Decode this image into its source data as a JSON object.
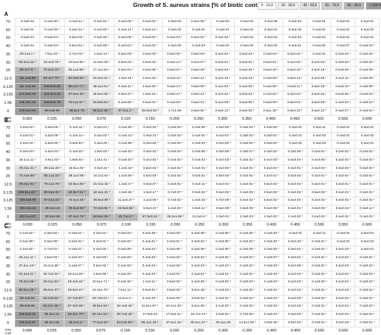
{
  "header": {
    "title": "Growth of S. aureus strains [% of biotic control]",
    "legend": [
      "0 - 19,9",
      "20 - 39,9",
      "40 - 59,9",
      "60 - 79,9",
      "80 - 99,9",
      "> 100 %"
    ]
  },
  "row_labels": [
    "70",
    "60",
    "50",
    "40",
    "35",
    "30",
    "25",
    "12.5",
    "6.125",
    "3.125",
    "1.56",
    "0"
  ],
  "column_labels": [
    "0.000",
    "0.025",
    "0.050",
    "0.075",
    "0.100",
    "0.150",
    "0.200",
    "0.250",
    "0.300",
    "0.350",
    "0.400",
    "0.450",
    "0.500",
    "0.550",
    "0.600"
  ],
  "axis_label_rows": "CRV",
  "axis_label_cols": "CXP",
  "panels": [
    {
      "label": "A",
      "rows": [
        [
          "0.3±0.02",
          "0.4±0.06 *",
          "0.4±0.11 *",
          "0.3±0.01 *",
          "0.4±0.06 *",
          "0.4±0.02 *",
          "0.3±0.03",
          "0.4±0.05 *",
          "0.4±0.02",
          "0.4±0.03",
          "0.4±0.08",
          "0.4±0.03",
          "0.3±0.01",
          "0.3±0.01",
          "0.3±0.01"
        ],
        [
          "0.3±0.01",
          "0.2±0.09 *",
          "0.2±0.14 *",
          "0.2±0.02 *",
          "0.4±0.14 *",
          "0.4±0.14 *",
          "0.3±0.03",
          "0.4±0.01",
          "0.4±0.01",
          "0.3±0.02",
          "0.3±0.01",
          "0.3±0.10",
          "0.4±0.02",
          "0.3±0.01",
          "0.3±0.03"
        ],
        [
          "0.5±0.04",
          "0.5±0.04 *",
          "0.5±0.04 *",
          "0.4±0.25 *",
          "0.4±0.05 *",
          "0.4±0.02 *",
          "0.4±0.03 *",
          "0.4±0.02 *",
          "0.4±0.02 *",
          "0.3±0.02",
          "0.3±0.02",
          "0.4±0.03",
          "0.4±0.03",
          "0.4±0.02",
          "0.4±0.01"
        ],
        [
          "0.3±0.03",
          "0.3±0.03 *",
          "0.6±0.61 *",
          "0.2±0.08 *",
          "0.2±0.01 *",
          "0.4±0.02 *",
          "0.3±0.03",
          "0.3±0.03",
          "0.3±0.02",
          "0.3±0.08",
          "0.3±0.03",
          "0.4±0.01",
          "0.2±0.05",
          "0.3±0.07",
          "0.3±0.03 *"
        ],
        [
          "20.1±3.1 *",
          "7.5±1.02 *",
          "0.7±0.03 *",
          "1.8±0.14 *",
          "0.5±0.03 *",
          "0.5±0.03 *",
          "0.5±0.02 *",
          "0.5±0.03 *",
          "0.4±0.02 *",
          "0.5±0.02 *",
          "0.3±0.03 *",
          "0.4±0.02 *",
          "0.4±0.02",
          "0.3±0.02 *",
          "0.3±0.02 *"
        ],
        [
          "50.3±3.43 *",
          "33.2±0.78 *",
          "19.9±2.96 *",
          "12.4±0.30 *",
          "0.5±0.02 *",
          "0.5±0.04 *",
          "0.5±0.12 *",
          "0.4±0.07 *",
          "0.5±0.01 *",
          "0.5±0.01 *",
          "0.5±0.01 *",
          "0.4±0.02 *",
          "0.4±0.02 *",
          "0.3±0.02 *",
          "0.3±0.02 *"
        ],
        [
          "89.4±7.9 *",
          "70.5±6.18 *",
          "35.1±2.98 *",
          "17.1±2.64 *",
          "0.5±0.01 *",
          "0.5±0.08 *",
          "0.6±0.07 *",
          "0.6±0.29 *",
          "0.5±0.04 *",
          "0.5±0.25 *",
          "0.5±0.16 *",
          "0.6±0.20 *",
          "0.5±0.16 *",
          "0.5±0.06 *",
          "0.4±0.09 *"
        ],
        [
          "111.1±6.80",
          "93.2±7.78 *",
          "63.9±6.66 *",
          "23.4±6.31 *",
          "1.0±0.18 *",
          "2.5±1.04 *",
          "0.5±0.11 *",
          "0.5±0.12 *",
          "0.4±0.15 *",
          "0.4±0.18 *",
          "0.4±0.08 *",
          "0.5±0.13 *",
          "0.4±0.09 *",
          "0.4±0.11 *",
          "0.3±0.09 *"
        ],
        [
          "111.1±6.36",
          "106.5±5.32",
          "88.5±7.72 *",
          "38.2±3.51 *",
          "6.0±0.11 *",
          "4.5±0.52 *",
          "0.5±0.13 *",
          "0.5±0.08 *",
          "0.4±0.04 *",
          "0.4±0.06 *",
          "0.4±0.06 *",
          "0.5±0.11 *",
          "0.5±0.16 *",
          "0.5±0.10 *",
          "0.4±0.08 *"
        ],
        [
          "101.9±9.30",
          "102.9±3.22",
          "67.5±4.48 *",
          "25.6±4.05 *",
          "0.9±0.37 *",
          "1.0±0.15 *",
          "0.5±0.27 *",
          "0.5±0.13 *",
          "0.4±0.02 *",
          "0.5±0.02 *",
          "0.4±0.02 *",
          "0.4±0.03 *",
          "0.5±0.32 *",
          "0.6±0.50 *",
          "0.5±0.04 *"
        ],
        [
          "108.3±5.18",
          "106.5±5.78",
          "78.1±2.67 *",
          "53.9±6.61 *",
          "5.2±5.65 *",
          "0.6±0.01 *",
          "0.4±0.03 *",
          "0.6±0.21 *",
          "0.4±0.09 *",
          "0.6±0.05 *",
          "0.5±0.05 *",
          "0.5±0.01 *",
          "0.6±0.29 *",
          "0.4±0.04 *",
          "0.3±0.12 *"
        ],
        [
          "100.0±4.90",
          "98.9±6.55",
          "95.5±1.76",
          "85.8±1.55 *",
          "67.6±2.2 *",
          "25.9±2.03 *",
          "1.7±1.59",
          "0.8±0.60 *",
          "0.5±0.12 *",
          "0.6±0.08 *",
          "0.6±1.36 *",
          "0.6±0.15 *",
          "0.5±0.12 *",
          "0.4±0.07 *",
          "0.4±0.04 *"
        ]
      ]
    },
    {
      "label": "B",
      "rows": [
        [
          "0.2±0.02 *",
          "0.3±0.06 *",
          "0.4±0.11 *",
          "0.3±0.01 *",
          "0.4±0.06 *",
          "0.4±0.02 *",
          "0.3±0.03 *",
          "0.4±0.05 *",
          "0.4±0.02 *",
          "0.4±0.03 *",
          "0.4±0.03 *",
          "0.4±0.03",
          "0.3±0.11",
          "0.3±0.01",
          "0.3±0.01"
        ],
        [
          "0.2±0.01 *",
          "0.2±0.09 *",
          "0.2±0.14 *",
          "0.2±0.02 *",
          "0.4±0.14 *",
          "0.4±0.14 *",
          "0.3±0.03 *",
          "0.4±0.01 *",
          "0.4±0.01 *",
          "0.3±0.02 *",
          "0.3±0.01 *",
          "0.3±0.10",
          "0.4±0.02",
          "0.3±0.01",
          "0.3±0.03"
        ],
        [
          "0.4±0.04 *",
          "0.4±0.04 *",
          "0.5±0.04 *",
          "0.4±0.25 *",
          "0.4±0.05 *",
          "0.4±0.02 *",
          "0.4±0.03 *",
          "0.4±0.02 *",
          "0.4±0.02 *",
          "0.3±0.02 *",
          "0.3±0.02 *",
          "0.4±0.03",
          "0.4±0.03",
          "0.4±0.02",
          "0.4±0.01"
        ],
        [
          "8.3±0.03 *",
          "0.4±0.03 *",
          "0.4±0.03 *",
          "1.8±0.03 *",
          "0.4±0.03 *",
          "0.4±0.02 *",
          "0.3±0.03 *",
          "0.3±0.06 *",
          "0.3±0.06 *",
          "0.3±0.07 *",
          "0.3±0.02 *",
          "0.3±0.05 *",
          "0.2±0.01 *",
          "0.2±0.01 *",
          "0.2±0.01 *"
        ],
        [
          "18.1±1.11 *",
          "3.9±1.03 *",
          "1.8±0.03 *",
          "1.2±1.41 *",
          "0.4±0.03 *",
          "0.4±0.03 *",
          "0.4±0.03 *",
          "0.4±0.02 *",
          "0.4±0.03 *",
          "0.3±0.02 *",
          "0.4±0.03 *",
          "0.5±0.04 *",
          "0.4±0.05 *",
          "0.3±0.02 *",
          "0.3±0.02 *"
        ],
        [
          "49.4±1.31 *",
          "36.2±1.28 *",
          "15.9±1.63 *",
          "3.0±0.15 *",
          "1.2±0.18 *",
          "0.5±0.02 *",
          "0.4±0.02 *",
          "0.4±0.01 *",
          "0.4±0.03 *",
          "0.4±0.01 *",
          "0.4±0.02 *",
          "0.4±0.01 *",
          "0.4±0.04 *",
          "0.3±0.02 *",
          "0.3±0.03 *"
        ],
        [
          "73.4±6.98 *",
          "65.1±2.18 *",
          "39.1±2.98 *",
          "18.2±2.64 *",
          "1.0±0.08 *",
          "0.5±0.03 *",
          "0.4±0.02 *",
          "0.5±0.01 *",
          "0.5±0.03 *",
          "0.4±0.01 *",
          "0.4±0.01 *",
          "0.5±0.03 *",
          "0.4±0.01 *",
          "0.4±0.01 *",
          "0.3±0.01 *"
        ],
        [
          "99.0±1.81 *",
          "79.2±2.78 *",
          "52.9±1.66 *",
          "21.0±2.15 *",
          "1.3±0.17 *",
          "0.4±0.07 *",
          "0.3±0.01 *",
          "0.4±0.11 *",
          "0.4±0.01 *",
          "0.4±0.01 *",
          "0.5±0.02 *",
          "0.4±0.04 *",
          "0.3±0.01 *",
          "0.3±0.01 *",
          "0.3±0.01 *"
        ],
        [
          "109.5±1.42 *",
          "99.9±8.20 *",
          "82.8±7.51 *",
          "42.3±1.21 *",
          "3.3±0.45 *",
          "1.0±0.17 *",
          "0.7±0.07 *",
          "0.8±0.02 *",
          "0.4±0.02 *",
          "0.4±0.05 *",
          "0.5±0.06 *",
          "0.4±0.05 *",
          "0.5±0.06 *",
          "0.4±0.01 *",
          "0.3±0.01 *"
        ],
        [
          "106.9±6.96",
          "97.6±3.22 *",
          "73.4±4.48 *",
          "45.8±4.08 *",
          "11.2±0.37 *",
          "1.1±0.05 *",
          "0.7±0.02 *",
          "1.4±0.15 *",
          "0.7±0.08 *",
          "0.6±0.02 *",
          "0.5±0.02 *",
          "0.5±0.03 *",
          "0.4±0.02 *",
          "0.4±0.02 *",
          "0.3±0.02 *"
        ],
        [
          "106.2±5.18",
          "99.3±6.13",
          "80.6±2.66 *",
          "72.3±6.61 *",
          "43.6±5.65 *",
          "5.5±0.10 *",
          "1.2±0.03 *",
          "0.8±0.21 *",
          "0.5±0.09 *",
          "0.5±0.05 *",
          "0.4±0.05 *",
          "0.4±0.01 *",
          "0.4±0.05 *",
          "0.3±0.04 *",
          "0.3±0.12 *"
        ],
        [
          "100.0±4.87",
          "92.8±6.55",
          "87.3±1.76 *",
          "82.8±1.55 *",
          "83.7±2.2 *",
          "57.3±3.41 *",
          "35.2±1.59 *",
          "13.3±0.6 *",
          "2.3±0.01 *",
          "2.3±0.03 *",
          "1.3±0.03 *",
          "1.1±0.02 *",
          "0.4±0.02 *",
          "0.4±0.01 *",
          "0.4±0.04 *"
        ]
      ]
    },
    {
      "label": "C",
      "rows": [
        [
          "0.2±0.02 *",
          "0.3±0.02 *",
          "0.3±0.01 *",
          "0.3±0.01 *",
          "0.2±0.02 *",
          "0.3±0.06 *",
          "0.3±0.02 *",
          "0.3±0.06 *",
          "0.4±0.05 *",
          "0.4±0.05 *",
          "0.4±0.03 *",
          "0.3±0.01",
          "0.3±0.11",
          "0.3±0.01",
          "0.3±0.01"
        ],
        [
          "0.3±0.08 *",
          "0.3±0.08 *",
          "0.3±0.02 *",
          "0.3±0.01 *",
          "0.3±0.02 *",
          "0.4±0.01 *",
          "0.3±0.01 *",
          "0.3±0.04 *",
          "0.3±0.05 *",
          "0.3±0.02 *",
          "0.3±0.02 *",
          "0.3±0.10 *",
          "0.3±0.01 *",
          "0.3±0.01",
          "0.3±0.03"
        ],
        [
          "2.2±0.02 *",
          "0.7±0.01 *",
          "0.4±0.01 *",
          "0.4±0.02 *",
          "0.4±0.05 *",
          "0.4±0.02 *",
          "0.3±0.06 *",
          "0.3±0.05 *",
          "0.4±0.05 *",
          "0.4±0.05 *",
          "0.3±0.02 *",
          "0.3±0.01 *",
          "0.3±0.01 *",
          "0.3±0.02 *",
          "0.3±0.01"
        ],
        [
          "26.1±1.11 *",
          "1.5±0.03 *",
          "0.4±0.03 *",
          "0.4±0.03 *",
          "0.4±0.03 *",
          "0.4±0.02 *",
          "0.3±0.02 *",
          "0.3±0.02 *",
          "0.3±0.02 *",
          "0.3±0.02 *",
          "0.3±0.07 *",
          "0.3±0.01 *",
          "0.2±0.01 *",
          "0.2±0.01 *",
          "0.2±0.01 *"
        ],
        [
          "37.2±1.43 *",
          "19.2±2.36 *",
          "4.4±0.67 *",
          "0.5±0.02 *",
          "0.4±0.03 *",
          "0.4±0.03 *",
          "0.4±0.03 *",
          "0.4±0.03 *",
          "0.4±0.03 *",
          "0.3±0.02 *",
          "0.3±0.03 *",
          "0.3±0.05 *",
          "0.3±0.01 *",
          "0.3±0.02 *",
          "0.3±0.02 *"
        ],
        [
          "51.4±3.11 *",
          "32.7±2.34 *",
          "18.2±1.32 *",
          "4.5±0.96 *",
          "0.4±0.02 *",
          "0.4±0.02 *",
          "0.4±0.01 *",
          "0.4±0.01 *",
          "0.4±0.01 *",
          "0.4±0.01 *",
          "0.4±0.03 *",
          "0.4±0.04 *",
          "0.3±0.01 *",
          "0.3±0.01 *",
          "0.3±0.03 *"
        ],
        [
          "79.3±2.56 *",
          "43.4±1.02 *",
          "25.4±0.32 *",
          "10.5±1.71 *",
          "8.4±0.34 *",
          "1.1±0.11 *",
          "0.6±0.03 *",
          "0.4±0.06 *",
          "0.3±0.03 *",
          "0.3±0.03 *",
          "0.4±0.02 *",
          "0.4±0.02 *",
          "0.4±0.02 *",
          "0.4±0.01 *",
          "0.3±0.02 *"
        ],
        [
          "90.0±1.25 *",
          "55.6±1.47 *",
          "28.8±2.47 *",
          "12.3±1.79 *",
          "7.6±1.11 *",
          "0.5±0.01 *",
          "0.8±0.03 *",
          "9.6±1.36 *",
          "0.4±0.03 *",
          "0.4±0.05 *",
          "0.4±0.01 *",
          "0.4±0.01 *",
          "0.3±0.01 *",
          "0.3±0.02 *",
          "0.3±0.02 *"
        ],
        [
          "98.2±6.64",
          "64.0±5.02 *",
          "47.7±0.87 *",
          "22.7±0.01 *",
          "14.5±1.3 *",
          "5.4±0.22 *",
          "8.6±0.03 *",
          "3.0±0.04 *",
          "2.2±0.01 *",
          "0.3±0.02 *",
          "0.4±0.01 *",
          "0.4±0.03 *",
          "0.3±0.01 *",
          "0.3±0.01 *",
          "0.3±0.01 *"
        ],
        [
          "98.6±6.96",
          "84.2±1.45 *",
          "57.3±0.48 *",
          "48.8±1.54 *",
          "32.4±0.18 *",
          "11.5±1.97 *",
          "10.2±1.40 *",
          "6.5±1.05 *",
          "2.1±0.02 *",
          "0.4±0.02 *",
          "0.3±0.02 *",
          "0.3±0.02 *",
          "0.3±0.01 *",
          "0.3±0.01 *",
          "0.3±0.02 *"
        ],
        [
          "103.3±2.32",
          "98.4±2.21",
          "90.3±1.79 *",
          "62.1±1.51 *",
          "50.7±0.18 *",
          "17.9±0.34",
          "17.8±2.21 *",
          "15.7±2.14 *",
          "1.0±0.02 *",
          "0.7±0.06 *",
          "0.4±0.02 *",
          "0.3±0.02 *",
          "0.3±0.01 *",
          "0.3±0.01 *",
          "0.3±0.02 *"
        ],
        [
          "100.0±3.97",
          "98.2±1.86",
          "86.2±1.5 *",
          "77.6±2.39 *",
          "64.0±0.58 *",
          "55.1±1.19 *",
          "37.5±1.15 *",
          "30.5±1.37 *",
          "26.4±1.26",
          "14.9±1.09 *",
          "3.9±0.45 *",
          "0.5±0.02 *",
          "0.4±0.01 *",
          "0.4±0.02 *",
          "0.3±0.01 *"
        ]
      ]
    }
  ]
}
